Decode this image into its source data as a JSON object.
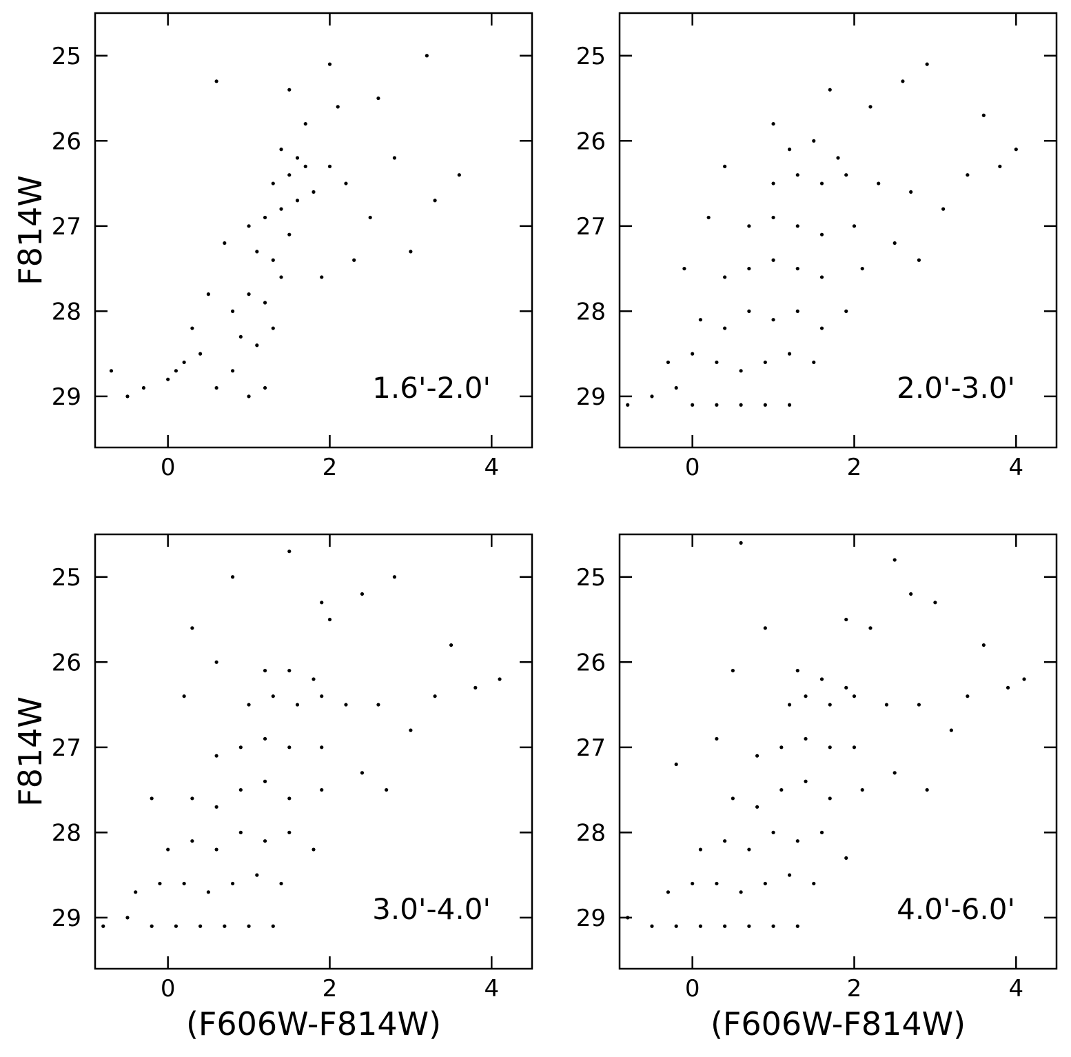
{
  "chart_data": [
    {
      "type": "scatter",
      "annotation": "1.6'-2.0'",
      "ylabel": "F814W",
      "color": "#000000",
      "xlim": [
        -0.9,
        4.5
      ],
      "ylim": [
        29.6,
        24.5
      ],
      "xticks": [
        0,
        2,
        4
      ],
      "yticks": [
        25,
        26,
        27,
        28,
        29
      ],
      "x": [
        -0.5,
        -0.3,
        0,
        0.2,
        0.4,
        0.6,
        0.8,
        1.0,
        1.2,
        0.9,
        1.1,
        1.3,
        1.0,
        1.2,
        1.4,
        1.1,
        1.3,
        1.5,
        1.2,
        1.4,
        1.6,
        1.3,
        1.5,
        1.7,
        1.4,
        1.6,
        1.8,
        2.0,
        2.2,
        2.5,
        2.8,
        3.0,
        3.3,
        3.6,
        0.5,
        0.3,
        0.1,
        0.7,
        1.9,
        2.3,
        2.6,
        1.7,
        1.5,
        0.6,
        2.0,
        3.2,
        2.1,
        -0.7,
        0.8,
        1.0
      ],
      "y": [
        29.0,
        28.9,
        28.8,
        28.6,
        28.5,
        28.9,
        28.7,
        29.0,
        28.9,
        28.3,
        28.4,
        28.2,
        27.8,
        27.9,
        27.6,
        27.3,
        27.4,
        27.1,
        26.9,
        26.8,
        26.7,
        26.5,
        26.4,
        26.3,
        26.1,
        26.2,
        26.6,
        26.3,
        26.5,
        26.9,
        26.2,
        27.3,
        26.7,
        26.4,
        27.8,
        28.2,
        28.7,
        27.2,
        27.6,
        27.4,
        25.5,
        25.8,
        25.4,
        25.3,
        25.1,
        25.0,
        25.6,
        28.7,
        28.0,
        27.0
      ]
    },
    {
      "type": "scatter",
      "annotation": "2.0'-3.0'",
      "color": "#000000",
      "xlim": [
        -0.9,
        4.5
      ],
      "ylim": [
        29.6,
        24.5
      ],
      "xticks": [
        0,
        2,
        4
      ],
      "yticks": [
        25,
        26,
        27,
        28,
        29
      ],
      "x": [
        -0.8,
        -0.5,
        -0.2,
        0,
        0.3,
        0.6,
        0.9,
        1.2,
        -0.3,
        0,
        0.3,
        0.6,
        0.9,
        1.2,
        1.5,
        0.1,
        0.4,
        0.7,
        1.0,
        1.3,
        1.6,
        1.9,
        0.4,
        0.7,
        1.0,
        1.3,
        1.6,
        2.1,
        0.7,
        1.0,
        1.3,
        1.6,
        2.0,
        2.5,
        1.0,
        1.3,
        1.6,
        1.9,
        2.3,
        2.7,
        3.1,
        1.2,
        1.5,
        1.8,
        3.4,
        3.8,
        4.0,
        2.2,
        2.6,
        1.0,
        0.4,
        2.9,
        1.7,
        3.6,
        2.8,
        -0.1,
        0.2
      ],
      "y": [
        29.1,
        29.0,
        28.9,
        29.1,
        29.1,
        29.1,
        29.1,
        29.1,
        28.6,
        28.5,
        28.6,
        28.7,
        28.6,
        28.5,
        28.6,
        28.1,
        28.2,
        28.0,
        28.1,
        28.0,
        28.2,
        28.0,
        27.6,
        27.5,
        27.4,
        27.5,
        27.6,
        27.5,
        27.0,
        26.9,
        27.0,
        27.1,
        27.0,
        27.2,
        26.5,
        26.4,
        26.5,
        26.4,
        26.5,
        26.6,
        26.8,
        26.1,
        26.0,
        26.2,
        26.4,
        26.3,
        26.1,
        25.6,
        25.3,
        25.8,
        26.3,
        25.1,
        25.4,
        25.7,
        27.4,
        27.5,
        26.9
      ]
    },
    {
      "type": "scatter",
      "annotation": "3.0'-4.0'",
      "xlabel": "(F606W-F814W)",
      "ylabel": "F814W",
      "color": "#000000",
      "xlim": [
        -0.9,
        4.5
      ],
      "ylim": [
        29.6,
        24.5
      ],
      "xticks": [
        0,
        2,
        4
      ],
      "yticks": [
        25,
        26,
        27,
        28,
        29
      ],
      "x": [
        -0.8,
        -0.5,
        -0.2,
        0.1,
        0.4,
        0.7,
        1.0,
        1.3,
        -0.4,
        -0.1,
        0.2,
        0.5,
        0.8,
        1.1,
        1.4,
        0.0,
        0.3,
        0.6,
        0.9,
        1.2,
        1.5,
        1.8,
        0.3,
        0.6,
        0.9,
        1.2,
        1.5,
        1.9,
        0.6,
        0.9,
        1.2,
        1.5,
        1.9,
        2.4,
        1.0,
        1.3,
        1.6,
        1.9,
        2.2,
        2.6,
        3.0,
        1.2,
        1.5,
        1.8,
        3.3,
        3.8,
        4.1,
        2.0,
        2.4,
        0.6,
        0.2,
        2.8,
        1.5,
        3.5,
        2.7,
        -0.2,
        0.3,
        0.8,
        1.9
      ],
      "y": [
        29.1,
        29.0,
        29.1,
        29.1,
        29.1,
        29.1,
        29.1,
        29.1,
        28.7,
        28.6,
        28.6,
        28.7,
        28.6,
        28.5,
        28.6,
        28.2,
        28.1,
        28.2,
        28.0,
        28.1,
        28.0,
        28.2,
        27.6,
        27.7,
        27.5,
        27.4,
        27.6,
        27.5,
        27.1,
        27.0,
        26.9,
        27.0,
        27.0,
        27.3,
        26.5,
        26.4,
        26.5,
        26.4,
        26.5,
        26.5,
        26.8,
        26.1,
        26.1,
        26.2,
        26.4,
        26.3,
        26.2,
        25.5,
        25.2,
        26.0,
        26.4,
        25.0,
        24.7,
        25.8,
        27.5,
        27.6,
        25.6,
        25.0,
        25.3
      ]
    },
    {
      "type": "scatter",
      "annotation": "4.0'-6.0'",
      "xlabel": "(F606W-F814W)",
      "color": "#000000",
      "xlim": [
        -0.9,
        4.5
      ],
      "ylim": [
        29.6,
        24.5
      ],
      "xticks": [
        0,
        2,
        4
      ],
      "yticks": [
        25,
        26,
        27,
        28,
        29
      ],
      "x": [
        -0.8,
        -0.5,
        -0.2,
        0.1,
        0.4,
        0.7,
        1.0,
        1.3,
        -0.3,
        0.0,
        0.3,
        0.6,
        0.9,
        1.2,
        1.5,
        0.1,
        0.4,
        0.7,
        1.0,
        1.3,
        1.6,
        1.9,
        0.5,
        0.8,
        1.1,
        1.4,
        1.7,
        2.1,
        0.8,
        1.1,
        1.4,
        1.7,
        2.0,
        2.5,
        1.2,
        1.4,
        1.7,
        2.0,
        2.4,
        2.8,
        3.2,
        1.3,
        1.6,
        1.9,
        3.4,
        3.9,
        4.1,
        2.2,
        2.7,
        0.5,
        0.3,
        3.0,
        1.9,
        3.6,
        2.9,
        -0.2,
        0.6,
        0.9,
        2.5
      ],
      "y": [
        29.0,
        29.1,
        29.1,
        29.1,
        29.1,
        29.1,
        29.1,
        29.1,
        28.7,
        28.6,
        28.6,
        28.7,
        28.6,
        28.5,
        28.6,
        28.2,
        28.1,
        28.2,
        28.0,
        28.1,
        28.0,
        28.3,
        27.6,
        27.7,
        27.5,
        27.4,
        27.6,
        27.5,
        27.1,
        27.0,
        26.9,
        27.0,
        27.0,
        27.3,
        26.5,
        26.4,
        26.5,
        26.4,
        26.5,
        26.5,
        26.8,
        26.1,
        26.2,
        26.3,
        26.4,
        26.3,
        26.2,
        25.6,
        25.2,
        26.1,
        26.9,
        25.3,
        25.5,
        25.8,
        27.5,
        27.2,
        24.6,
        25.6,
        24.8
      ]
    }
  ]
}
